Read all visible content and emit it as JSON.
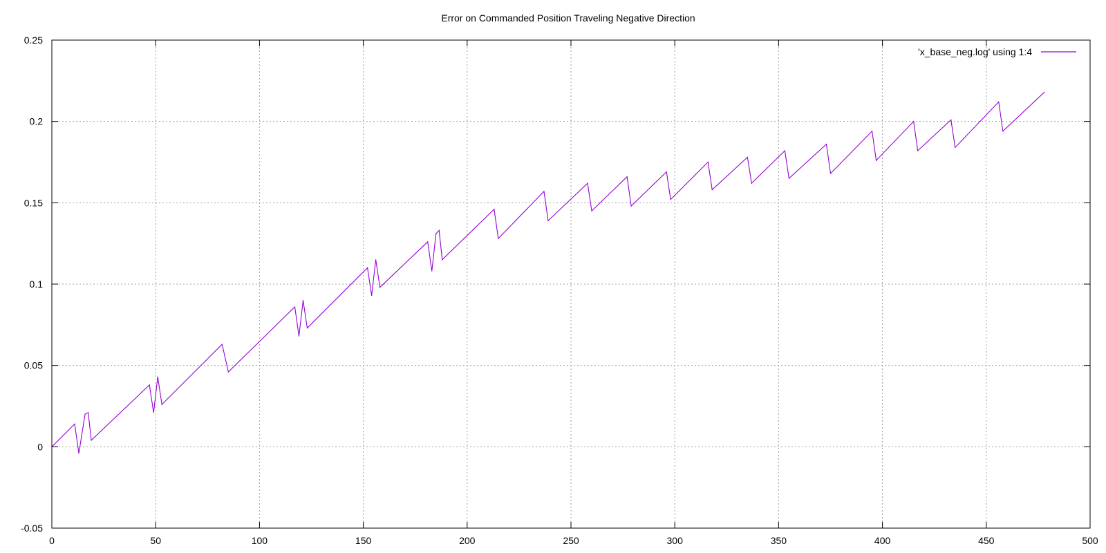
{
  "chart_data": {
    "type": "line",
    "title": "Error on Commanded Position Traveling Negative Direction",
    "xlabel": "",
    "ylabel": "",
    "xlim": [
      0,
      500
    ],
    "ylim": [
      -0.05,
      0.25
    ],
    "x_ticks": [
      0,
      50,
      100,
      150,
      200,
      250,
      300,
      350,
      400,
      450,
      500
    ],
    "y_ticks": [
      -0.05,
      0,
      0.05,
      0.1,
      0.15,
      0.2,
      0.25
    ],
    "x_tick_labels": [
      "0",
      "50",
      "100",
      "150",
      "200",
      "250",
      "300",
      "350",
      "400",
      "450",
      "500"
    ],
    "y_tick_labels": [
      "-0.05",
      "0",
      "0.05",
      "0.1",
      "0.15",
      "0.2",
      "0.25"
    ],
    "grid": true,
    "legend_position": "top-right",
    "series": [
      {
        "name": "'x_base_neg.log' using 1:4",
        "color": "#9400d3",
        "x": [
          0,
          11,
          13,
          16,
          17.5,
          19,
          47,
          49,
          51,
          53,
          82,
          85,
          117,
          119,
          121,
          123,
          152,
          154,
          156,
          158,
          181,
          183,
          185,
          186.5,
          188,
          213,
          215,
          237,
          239,
          258,
          260,
          277,
          279,
          296,
          298,
          316,
          318,
          335,
          337,
          353,
          355,
          373,
          375,
          395,
          397,
          415,
          417,
          433,
          435,
          456,
          458,
          478
        ],
        "y": [
          0,
          0.014,
          -0.004,
          0.02,
          0.021,
          0.004,
          0.038,
          0.021,
          0.043,
          0.026,
          0.063,
          0.046,
          0.086,
          0.068,
          0.09,
          0.073,
          0.11,
          0.093,
          0.115,
          0.098,
          0.126,
          0.108,
          0.131,
          0.133,
          0.115,
          0.146,
          0.128,
          0.157,
          0.139,
          0.162,
          0.145,
          0.166,
          0.148,
          0.169,
          0.152,
          0.175,
          0.158,
          0.178,
          0.162,
          0.182,
          0.165,
          0.186,
          0.168,
          0.194,
          0.176,
          0.2,
          0.182,
          0.201,
          0.184,
          0.212,
          0.194,
          0.218
        ]
      }
    ]
  }
}
